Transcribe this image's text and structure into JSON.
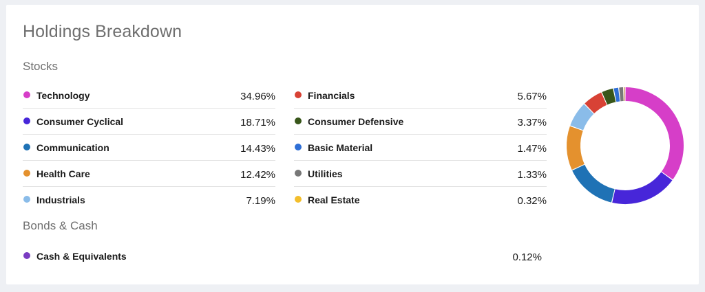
{
  "title": "Holdings Breakdown",
  "stocks": {
    "heading": "Stocks",
    "left": [
      {
        "label": "Technology",
        "value": "34.96%",
        "color": "#d63ec8"
      },
      {
        "label": "Consumer Cyclical",
        "value": "18.71%",
        "color": "#4726d9"
      },
      {
        "label": "Communication",
        "value": "14.43%",
        "color": "#1f72b5"
      },
      {
        "label": "Health Care",
        "value": "12.42%",
        "color": "#e4912e"
      },
      {
        "label": "Industrials",
        "value": "7.19%",
        "color": "#8abce9"
      }
    ],
    "right": [
      {
        "label": "Financials",
        "value": "5.67%",
        "color": "#d84235"
      },
      {
        "label": "Consumer Defensive",
        "value": "3.37%",
        "color": "#38561a"
      },
      {
        "label": "Basic Material",
        "value": "1.47%",
        "color": "#2f6fd6"
      },
      {
        "label": "Utilities",
        "value": "1.33%",
        "color": "#777777"
      },
      {
        "label": "Real Estate",
        "value": "0.32%",
        "color": "#f3be2c"
      }
    ]
  },
  "bonds": {
    "heading": "Bonds & Cash",
    "items": [
      {
        "label": "Cash & Equivalents",
        "value": "0.12%",
        "color": "#7a3cc2"
      }
    ]
  },
  "chart_data": {
    "type": "pie",
    "categories": [
      "Technology",
      "Consumer Cyclical",
      "Communication",
      "Health Care",
      "Industrials",
      "Financials",
      "Consumer Defensive",
      "Basic Material",
      "Utilities",
      "Real Estate",
      "Cash & Equivalents"
    ],
    "values": [
      34.96,
      18.71,
      14.43,
      12.42,
      7.19,
      5.67,
      3.37,
      1.47,
      1.33,
      0.32,
      0.12
    ],
    "colors": [
      "#d63ec8",
      "#4726d9",
      "#1f72b5",
      "#e4912e",
      "#8abce9",
      "#d84235",
      "#38561a",
      "#2f6fd6",
      "#777777",
      "#f3be2c",
      "#7a3cc2"
    ],
    "donut": true
  }
}
